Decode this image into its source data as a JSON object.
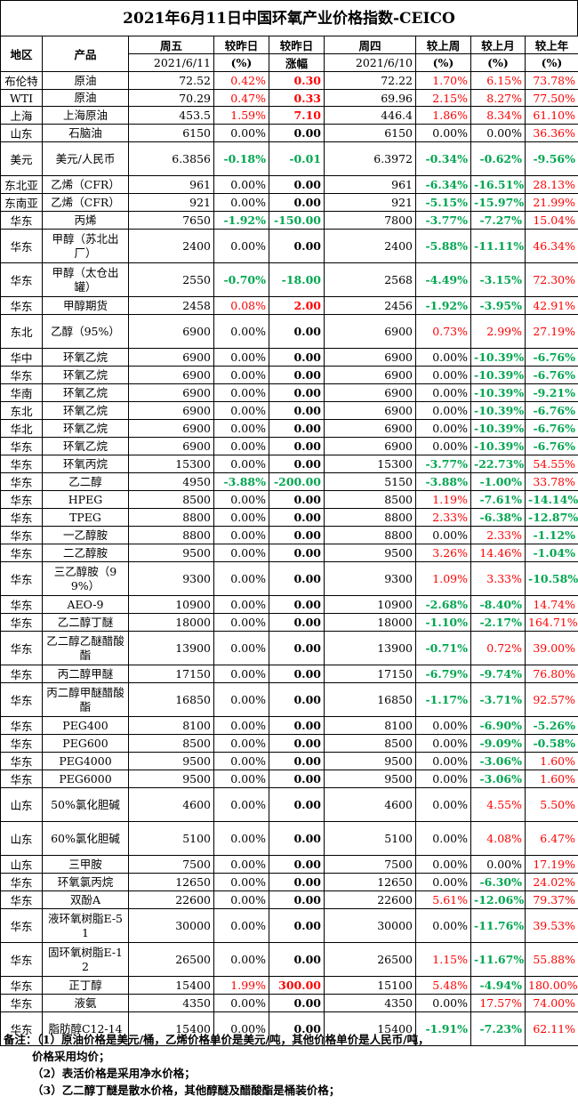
{
  "title": "2021年6月11日中国环氧产业价格指数-CEICO",
  "header": {
    "region": "地区",
    "product": "产品",
    "fri": "周五",
    "fri_date": "2021/6/11",
    "chg_day": "较昨日",
    "chg_day_unit": "(%)",
    "chg_day_amt": "较昨日",
    "chg_day_amt_unit": "涨幅",
    "thu": "周四",
    "thu_date": "2021/6/10",
    "chg_week": "较上周",
    "chg_week_unit": "(%)",
    "chg_month": "较上月",
    "chg_month_unit": "(%)",
    "chg_year": "较上年",
    "chg_year_unit": "(%)"
  },
  "colors": {
    "up": "#ff0000",
    "down": "#00a650",
    "flat": "#000000"
  },
  "rows": [
    {
      "region": "布伦特",
      "product": "原油",
      "fri": "72.52",
      "pct": "0.42%",
      "amt": "0.30",
      "thu": "72.22",
      "wk": "1.70%",
      "mo": "6.15%",
      "yr": "73.78%",
      "h": 19
    },
    {
      "region": "WTI",
      "product": "原油",
      "fri": "70.29",
      "pct": "0.47%",
      "amt": "0.33",
      "thu": "69.96",
      "wk": "2.15%",
      "mo": "8.27%",
      "yr": "77.50%",
      "h": 19
    },
    {
      "region": "上海",
      "product": "上海原油",
      "fri": "453.5",
      "pct": "1.59%",
      "amt": "7.10",
      "thu": "446.4",
      "wk": "1.86%",
      "mo": "8.34%",
      "yr": "61.10%",
      "h": 19
    },
    {
      "region": "山东",
      "product": "石脑油",
      "fri": "6150",
      "pct": "0.00%",
      "amt": "0.00",
      "thu": "6150",
      "wk": "0.00%",
      "mo": "0.00%",
      "yr": "36.36%",
      "h": 19
    },
    {
      "region": "美元",
      "product": "美元/人民币",
      "fri": "6.3856",
      "pct": "-0.18%",
      "amt": "-0.01",
      "thu": "6.3972",
      "wk": "-0.34%",
      "mo": "-0.62%",
      "yr": "-9.56%",
      "h": 38
    },
    {
      "region": "东北亚",
      "product": "乙烯（CFR）",
      "fri": "961",
      "pct": "0.00%",
      "amt": "0.00",
      "thu": "961",
      "wk": "-6.34%",
      "mo": "-16.51%",
      "yr": "28.13%",
      "h": 19
    },
    {
      "region": "东南亚",
      "product": "乙烯（CFR）",
      "fri": "921",
      "pct": "0.00%",
      "amt": "0.00",
      "thu": "921",
      "wk": "-5.15%",
      "mo": "-15.97%",
      "yr": "21.99%",
      "h": 19
    },
    {
      "region": "华东",
      "product": "丙烯",
      "fri": "7650",
      "pct": "-1.92%",
      "amt": "-150.00",
      "thu": "7800",
      "wk": "-3.77%",
      "mo": "-7.27%",
      "yr": "15.04%",
      "h": 19
    },
    {
      "region": "华东",
      "product": "甲醇（苏北出厂）",
      "fri": "2400",
      "pct": "0.00%",
      "amt": "0.00",
      "thu": "2400",
      "wk": "-5.88%",
      "mo": "-11.11%",
      "yr": "46.34%",
      "h": 38
    },
    {
      "region": "华东",
      "product": "甲醇（太仓出罐）",
      "fri": "2550",
      "pct": "-0.70%",
      "amt": "-18.00",
      "thu": "2568",
      "wk": "-4.49%",
      "mo": "-3.15%",
      "yr": "72.30%",
      "h": 38
    },
    {
      "region": "华东",
      "product": "甲醇期货",
      "fri": "2458",
      "pct": "0.08%",
      "amt": "2.00",
      "thu": "2456",
      "wk": "-1.92%",
      "mo": "-3.95%",
      "yr": "42.91%",
      "h": 19
    },
    {
      "region": "东北",
      "product": "乙醇（95%）",
      "fri": "6900",
      "pct": "0.00%",
      "amt": "0.00",
      "thu": "6900",
      "wk": "0.73%",
      "mo": "2.99%",
      "yr": "27.19%",
      "h": 38
    },
    {
      "region": "华中",
      "product": "环氧乙烷",
      "fri": "6900",
      "pct": "0.00%",
      "amt": "0.00",
      "thu": "6900",
      "wk": "0.00%",
      "mo": "-10.39%",
      "yr": "-6.76%",
      "h": 19
    },
    {
      "region": "华东",
      "product": "环氧乙烷",
      "fri": "6900",
      "pct": "0.00%",
      "amt": "0.00",
      "thu": "6900",
      "wk": "0.00%",
      "mo": "-10.39%",
      "yr": "-6.76%",
      "h": 19
    },
    {
      "region": "华南",
      "product": "环氧乙烷",
      "fri": "6900",
      "pct": "0.00%",
      "amt": "0.00",
      "thu": "6900",
      "wk": "0.00%",
      "mo": "-10.39%",
      "yr": "-9.21%",
      "h": 19
    },
    {
      "region": "东北",
      "product": "环氧乙烷",
      "fri": "6900",
      "pct": "0.00%",
      "amt": "0.00",
      "thu": "6900",
      "wk": "0.00%",
      "mo": "-10.39%",
      "yr": "-6.76%",
      "h": 19
    },
    {
      "region": "华北",
      "product": "环氧乙烷",
      "fri": "6900",
      "pct": "0.00%",
      "amt": "0.00",
      "thu": "6900",
      "wk": "0.00%",
      "mo": "-10.39%",
      "yr": "-6.76%",
      "h": 19
    },
    {
      "region": "华东",
      "product": "环氧乙烷",
      "fri": "6900",
      "pct": "0.00%",
      "amt": "0.00",
      "thu": "6900",
      "wk": "0.00%",
      "mo": "-10.39%",
      "yr": "-6.76%",
      "h": 19
    },
    {
      "region": "华东",
      "product": "环氧丙烷",
      "fri": "15300",
      "pct": "0.00%",
      "amt": "0.00",
      "thu": "15300",
      "wk": "-3.77%",
      "mo": "-22.73%",
      "yr": "54.55%",
      "h": 19
    },
    {
      "region": "华东",
      "product": "乙二醇",
      "fri": "4950",
      "pct": "-3.88%",
      "amt": "-200.00",
      "thu": "5150",
      "wk": "-3.88%",
      "mo": "-1.00%",
      "yr": "33.78%",
      "h": 19
    },
    {
      "region": "华东",
      "product": "HPEG",
      "fri": "8500",
      "pct": "0.00%",
      "amt": "0.00",
      "thu": "8500",
      "wk": "1.19%",
      "mo": "-7.61%",
      "yr": "-14.14%",
      "h": 19
    },
    {
      "region": "华东",
      "product": "TPEG",
      "fri": "8800",
      "pct": "0.00%",
      "amt": "0.00",
      "thu": "8800",
      "wk": "2.33%",
      "mo": "-6.38%",
      "yr": "-12.87%",
      "h": 19
    },
    {
      "region": "华东",
      "product": "一乙醇胺",
      "fri": "8800",
      "pct": "0.00%",
      "amt": "0.00",
      "thu": "8800",
      "wk": "0.00%",
      "mo": "2.33%",
      "yr": "-1.12%",
      "h": 19
    },
    {
      "region": "华东",
      "product": "二乙醇胺",
      "fri": "9500",
      "pct": "0.00%",
      "amt": "0.00",
      "thu": "9500",
      "wk": "3.26%",
      "mo": "14.46%",
      "yr": "-1.04%",
      "h": 19
    },
    {
      "region": "华东",
      "product": "三乙醇胺（99%）",
      "fri": "9300",
      "pct": "0.00%",
      "amt": "0.00",
      "thu": "9300",
      "wk": "1.09%",
      "mo": "3.33%",
      "yr": "-10.58%",
      "h": 38
    },
    {
      "region": "华东",
      "product": "AEO-9",
      "fri": "10900",
      "pct": "0.00%",
      "amt": "0.00",
      "thu": "10900",
      "wk": "-2.68%",
      "mo": "-8.40%",
      "yr": "14.74%",
      "h": 19
    },
    {
      "region": "华东",
      "product": "乙二醇丁醚",
      "fri": "18000",
      "pct": "0.00%",
      "amt": "0.00",
      "thu": "18000",
      "wk": "-1.10%",
      "mo": "-2.17%",
      "yr": "164.71%",
      "h": 19
    },
    {
      "region": "华东",
      "product": "乙二醇乙醚醋酸酯",
      "fri": "13900",
      "pct": "0.00%",
      "amt": "0.00",
      "thu": "13900",
      "wk": "-0.71%",
      "mo": "0.72%",
      "yr": "39.00%",
      "h": 38
    },
    {
      "region": "华东",
      "product": "丙二醇甲醚",
      "fri": "17150",
      "pct": "0.00%",
      "amt": "0.00",
      "thu": "17150",
      "wk": "-6.79%",
      "mo": "-9.74%",
      "yr": "76.80%",
      "h": 19
    },
    {
      "region": "华东",
      "product": "丙二醇甲醚醋酸酯",
      "fri": "16850",
      "pct": "0.00%",
      "amt": "0.00",
      "thu": "16850",
      "wk": "-1.17%",
      "mo": "-3.71%",
      "yr": "92.57%",
      "h": 38
    },
    {
      "region": "华东",
      "product": "PEG400",
      "fri": "8100",
      "pct": "0.00%",
      "amt": "0.00",
      "thu": "8100",
      "wk": "0.00%",
      "mo": "-6.90%",
      "yr": "-5.26%",
      "h": 19
    },
    {
      "region": "华东",
      "product": "PEG600",
      "fri": "8500",
      "pct": "0.00%",
      "amt": "0.00",
      "thu": "8500",
      "wk": "0.00%",
      "mo": "-9.09%",
      "yr": "-0.58%",
      "h": 19
    },
    {
      "region": "华东",
      "product": "PEG4000",
      "fri": "9500",
      "pct": "0.00%",
      "amt": "0.00",
      "thu": "9500",
      "wk": "0.00%",
      "mo": "-3.06%",
      "yr": "1.60%",
      "h": 19
    },
    {
      "region": "华东",
      "product": "PEG6000",
      "fri": "9500",
      "pct": "0.00%",
      "amt": "0.00",
      "thu": "9500",
      "wk": "0.00%",
      "mo": "-3.06%",
      "yr": "1.60%",
      "h": 19
    },
    {
      "region": "山东",
      "product": "50%氯化胆碱",
      "fri": "4600",
      "pct": "0.00%",
      "amt": "0.00",
      "thu": "4600",
      "wk": "0.00%",
      "mo": "4.55%",
      "yr": "5.50%",
      "h": 38
    },
    {
      "region": "山东",
      "product": "60%氯化胆碱",
      "fri": "5100",
      "pct": "0.00%",
      "amt": "0.00",
      "thu": "5100",
      "wk": "0.00%",
      "mo": "4.08%",
      "yr": "6.47%",
      "h": 38
    },
    {
      "region": "山东",
      "product": "三甲胺",
      "fri": "7500",
      "pct": "0.00%",
      "amt": "0.00",
      "thu": "7500",
      "wk": "0.00%",
      "mo": "0.00%",
      "yr": "17.19%",
      "h": 19
    },
    {
      "region": "华东",
      "product": "环氧氯丙烷",
      "fri": "12650",
      "pct": "0.00%",
      "amt": "0.00",
      "thu": "12650",
      "wk": "0.00%",
      "mo": "-6.30%",
      "yr": "24.02%",
      "h": 19
    },
    {
      "region": "华东",
      "product": "双酚A",
      "fri": "22600",
      "pct": "0.00%",
      "amt": "0.00",
      "thu": "22600",
      "wk": "5.61%",
      "mo": "-12.06%",
      "yr": "79.37%",
      "h": 19
    },
    {
      "region": "华东",
      "product": "液环氧树脂E-51",
      "fri": "30000",
      "pct": "0.00%",
      "amt": "0.00",
      "thu": "30000",
      "wk": "0.00%",
      "mo": "-11.76%",
      "yr": "39.53%",
      "h": 38
    },
    {
      "region": "华东",
      "product": "固环氧树脂E-12",
      "fri": "26500",
      "pct": "0.00%",
      "amt": "0.00",
      "thu": "26500",
      "wk": "1.15%",
      "mo": "-11.67%",
      "yr": "55.88%",
      "h": 38
    },
    {
      "region": "华东",
      "product": "正丁醇",
      "fri": "15400",
      "pct": "1.99%",
      "amt": "300.00",
      "thu": "15100",
      "wk": "5.48%",
      "mo": "-4.94%",
      "yr": "180.00%",
      "h": 19
    },
    {
      "region": "华东",
      "product": "液氨",
      "fri": "4350",
      "pct": "0.00%",
      "amt": "0.00",
      "thu": "4350",
      "wk": "0.00%",
      "mo": "17.57%",
      "yr": "74.00%",
      "h": 19
    },
    {
      "region": "华东",
      "product": "脂肪醇C12-14",
      "fri": "15400",
      "pct": "0.00%",
      "amt": "0.00",
      "thu": "15400",
      "wk": "-1.91%",
      "mo": "-7.23%",
      "yr": "62.11%",
      "h": 38
    }
  ],
  "notes": {
    "label": "备注：",
    "line1": "（1）原油价格是美元/桶，乙烯价格单价是美元/吨，其他价格单价是人民币/吨，",
    "line1b": "价格采用均价；",
    "line2": "（2）表活价格是采用净水价格；",
    "line3": "（3）乙二醇丁醚是散水价格，其他醇醚及醋酸酯是桶装价格；"
  }
}
